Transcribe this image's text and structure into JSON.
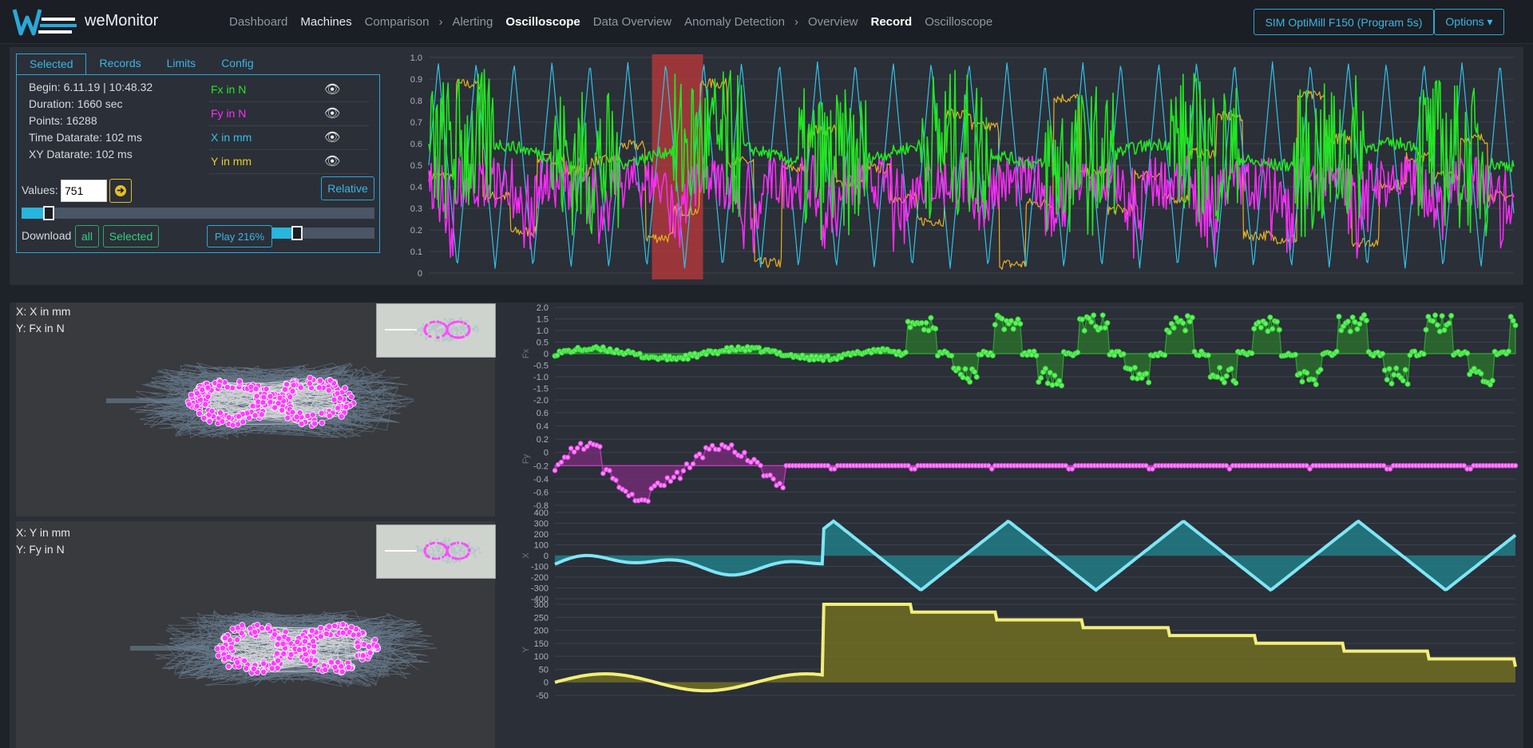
{
  "app": {
    "brand": "weMonitor"
  },
  "nav": {
    "items": [
      {
        "label": "Dashboard",
        "style": "grey"
      },
      {
        "label": "Machines",
        "style": "white"
      },
      {
        "label": "Comparison",
        "style": "grey"
      },
      {
        "label": "›",
        "style": "chev"
      },
      {
        "label": "Alerting",
        "style": "grey"
      },
      {
        "label": "Oscilloscope",
        "style": "bold"
      },
      {
        "label": "Data Overview",
        "style": "grey"
      },
      {
        "label": "Anomaly Detection",
        "style": "grey"
      },
      {
        "label": "›",
        "style": "chev"
      },
      {
        "label": "Overview",
        "style": "grey"
      },
      {
        "label": "Record",
        "style": "bold"
      },
      {
        "label": "Oscilloscope",
        "style": "grey"
      }
    ],
    "machine_button": "SIM OptiMill F150 (Program 5s)",
    "options_button": "Options ▾"
  },
  "tabs": [
    "Selected",
    "Records",
    "Limits",
    "Config"
  ],
  "info": {
    "begin": "Begin: 6.11.19 | 10:48.32",
    "duration": "Duration: 1660 sec",
    "points": "Points: 16288",
    "time_datarate": "Time Datarate: 102 ms",
    "xy_datarate": "XY Datarate: 102 ms"
  },
  "series": [
    {
      "label": "Fx in N",
      "color": "#22e622"
    },
    {
      "label": "Fy in N",
      "color": "#ff2bff"
    },
    {
      "label": "X in mm",
      "color": "#2fc2e8"
    },
    {
      "label": "Y in mm",
      "color": "#e8d020"
    }
  ],
  "controls": {
    "relative": "Relative",
    "values_label": "Values:",
    "values_input": "751",
    "values_slider_fraction": 0.06,
    "download_label": "Download",
    "download_all": "all",
    "download_selected": "Selected",
    "play": "Play 216%",
    "play_slider_fraction": 0.19
  },
  "overview_chart": {
    "ylim": [
      0,
      1
    ],
    "yticks": [
      "0",
      "0.1",
      "0.2",
      "0.3",
      "0.4",
      "0.5",
      "0.6",
      "0.7",
      "0.8",
      "0.9",
      "1.0"
    ],
    "selection": {
      "start": 0.11,
      "end": 0.135
    },
    "colors": {
      "Fx": "#22e622",
      "Fy": "#ff2bff",
      "X": "#2fc2e8",
      "Y": "#e8b020",
      "selection": "#c03a3a"
    }
  },
  "scatter": [
    {
      "x_label": "X: X in mm",
      "y_label": "Y: Fx in N"
    },
    {
      "x_label": "X: Y in mm",
      "y_label": "Y: Fy in N"
    }
  ],
  "chart_data": [
    {
      "type": "line",
      "series": [
        {
          "name": "Fx",
          "ylabel": "Fx"
        }
      ],
      "ylim": [
        -2.0,
        2.0
      ],
      "yticks": [
        "2.0",
        "1.5",
        "1.0",
        "0.5",
        "0",
        "-0.5",
        "-1.0",
        "-1.5",
        "-2.0"
      ],
      "color": "#2fd62f"
    },
    {
      "type": "line",
      "series": [
        {
          "name": "Fy",
          "ylabel": "Fy"
        }
      ],
      "ylim": [
        -0.8,
        0.6
      ],
      "yticks": [
        "0.6",
        "0.4",
        "0.2",
        "0",
        "-0.2",
        "-0.4",
        "-0.6",
        "-0.8"
      ],
      "color": "#e040e0"
    },
    {
      "type": "area",
      "series": [
        {
          "name": "X",
          "ylabel": "X"
        }
      ],
      "ylim": [
        -400,
        400
      ],
      "yticks": [
        "400",
        "300",
        "200",
        "100",
        "0",
        "-100",
        "-200",
        "-300",
        "-400"
      ],
      "color": "#7ee6f5"
    },
    {
      "type": "area",
      "series": [
        {
          "name": "Y",
          "ylabel": "Y"
        }
      ],
      "ylim": [
        -50,
        300
      ],
      "yticks": [
        "300",
        "250",
        "200",
        "150",
        "100",
        "50",
        "0",
        "-50"
      ],
      "color": "#f2ee7a"
    }
  ]
}
